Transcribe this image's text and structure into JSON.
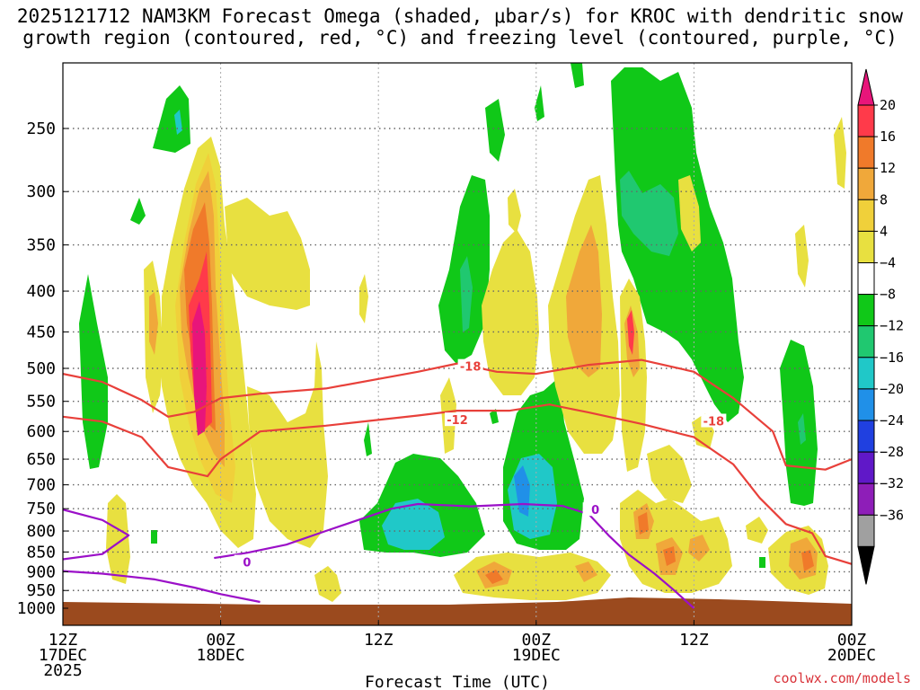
{
  "title_line1": "2025121712 NAM3KM Forecast Omega (shaded, μbar/s) for KROC with dendritic snow",
  "title_line2": "growth region (contoured, red, °C) and freezing level (contoured, purple, °C)",
  "xlabel": "Forecast Time (UTC)",
  "credit": "coolwx.com/models",
  "colors": {
    "ground": "#9b4a1e",
    "dgz_contour": "#e8403a",
    "freezing_contour": "#9b10c8",
    "grid": "#666666"
  },
  "chart_data": {
    "type": "heatmap",
    "title": "2025121712 NAM3KM Forecast Omega (shaded, μbar/s) for KROC with dendritic snow growth region (contoured, red, °C) and freezing level (contoured, purple, °C)",
    "xlabel": "Forecast Time (UTC)",
    "ylabel": "",
    "x_hours_range": [
      0,
      60
    ],
    "x_ticks": [
      {
        "hour": 0,
        "lines": [
          "12Z",
          "17DEC",
          "2025"
        ]
      },
      {
        "hour": 12,
        "lines": [
          "00Z",
          "18DEC"
        ]
      },
      {
        "hour": 24,
        "lines": [
          "12Z"
        ]
      },
      {
        "hour": 36,
        "lines": [
          "00Z",
          "19DEC"
        ]
      },
      {
        "hour": 48,
        "lines": [
          "12Z"
        ]
      },
      {
        "hour": 60,
        "lines": [
          "00Z",
          "20DEC"
        ]
      }
    ],
    "y_pressure_range": [
      1000,
      200
    ],
    "y_ticks": [
      250,
      300,
      350,
      400,
      450,
      500,
      550,
      600,
      650,
      700,
      750,
      800,
      850,
      900,
      950,
      1000
    ],
    "grid": true,
    "colorbar": {
      "labels": [
        "20",
        "16",
        "12",
        "8",
        "4",
        "−4",
        "−8",
        "−12",
        "−16",
        "−20",
        "−24",
        "−28",
        "−32",
        "−36"
      ],
      "colors": [
        "#ff3a4a",
        "#f07a2a",
        "#f0a83a",
        "#f0d03a",
        "#e8e040",
        "#ffffff",
        "#10c818",
        "#20c870",
        "#20c8c8",
        "#2090e8",
        "#2040e0",
        "#6018c8",
        "#8e1eb8",
        "#a0a0a0"
      ],
      "top_arrow_color": "#e8157a",
      "bottom_arrow_color": "#000000"
    },
    "contours": [
      {
        "label": "-18",
        "kind": "dendritic",
        "points": [
          [
            0,
            508
          ],
          [
            3,
            520
          ],
          [
            6,
            548
          ],
          [
            8,
            575
          ],
          [
            10,
            567
          ],
          [
            12,
            545
          ],
          [
            15,
            538
          ],
          [
            20,
            530
          ],
          [
            27,
            505
          ],
          [
            30,
            493
          ],
          [
            33,
            505
          ],
          [
            36,
            508
          ],
          [
            40,
            495
          ],
          [
            44,
            488
          ],
          [
            48,
            505
          ],
          [
            51,
            545
          ],
          [
            54,
            600
          ],
          [
            55,
            662
          ],
          [
            58,
            670
          ],
          [
            60,
            650
          ]
        ]
      },
      {
        "label": "-12",
        "kind": "dendritic",
        "points": [
          [
            0,
            575
          ],
          [
            3,
            583
          ],
          [
            6,
            610
          ],
          [
            8,
            665
          ],
          [
            11,
            683
          ],
          [
            12,
            650
          ],
          [
            15,
            600
          ],
          [
            20,
            590
          ],
          [
            27,
            573
          ],
          [
            30,
            565
          ],
          [
            34,
            565
          ],
          [
            37,
            555
          ],
          [
            40,
            568
          ],
          [
            44,
            587
          ],
          [
            48,
            610
          ],
          [
            51,
            660
          ],
          [
            53,
            727
          ],
          [
            55,
            784
          ],
          [
            57,
            805
          ],
          [
            58,
            860
          ],
          [
            60,
            880
          ]
        ]
      },
      {
        "label": "0",
        "kind": "freezing",
        "points": [
          [
            0,
            752
          ],
          [
            3,
            775
          ],
          [
            5,
            810
          ],
          [
            3,
            855
          ],
          [
            0,
            868
          ]
        ]
      },
      {
        "label": "0",
        "kind": "freezing",
        "points": [
          [
            11.5,
            865
          ],
          [
            14,
            852
          ],
          [
            17,
            832
          ],
          [
            20,
            800
          ],
          [
            25,
            750
          ],
          [
            27,
            740
          ],
          [
            31,
            745
          ],
          [
            35,
            740
          ],
          [
            38,
            744
          ],
          [
            40,
            762
          ],
          [
            41.5,
            810
          ],
          [
            43,
            855
          ],
          [
            45,
            905
          ],
          [
            46.5,
            950
          ],
          [
            48,
            1000
          ]
        ]
      },
      {
        "label": "0",
        "kind": "freezing",
        "points": [
          [
            0,
            898
          ],
          [
            3,
            905
          ],
          [
            7,
            920
          ],
          [
            10,
            942
          ],
          [
            12,
            960
          ],
          [
            15,
            982
          ]
        ]
      }
    ]
  }
}
